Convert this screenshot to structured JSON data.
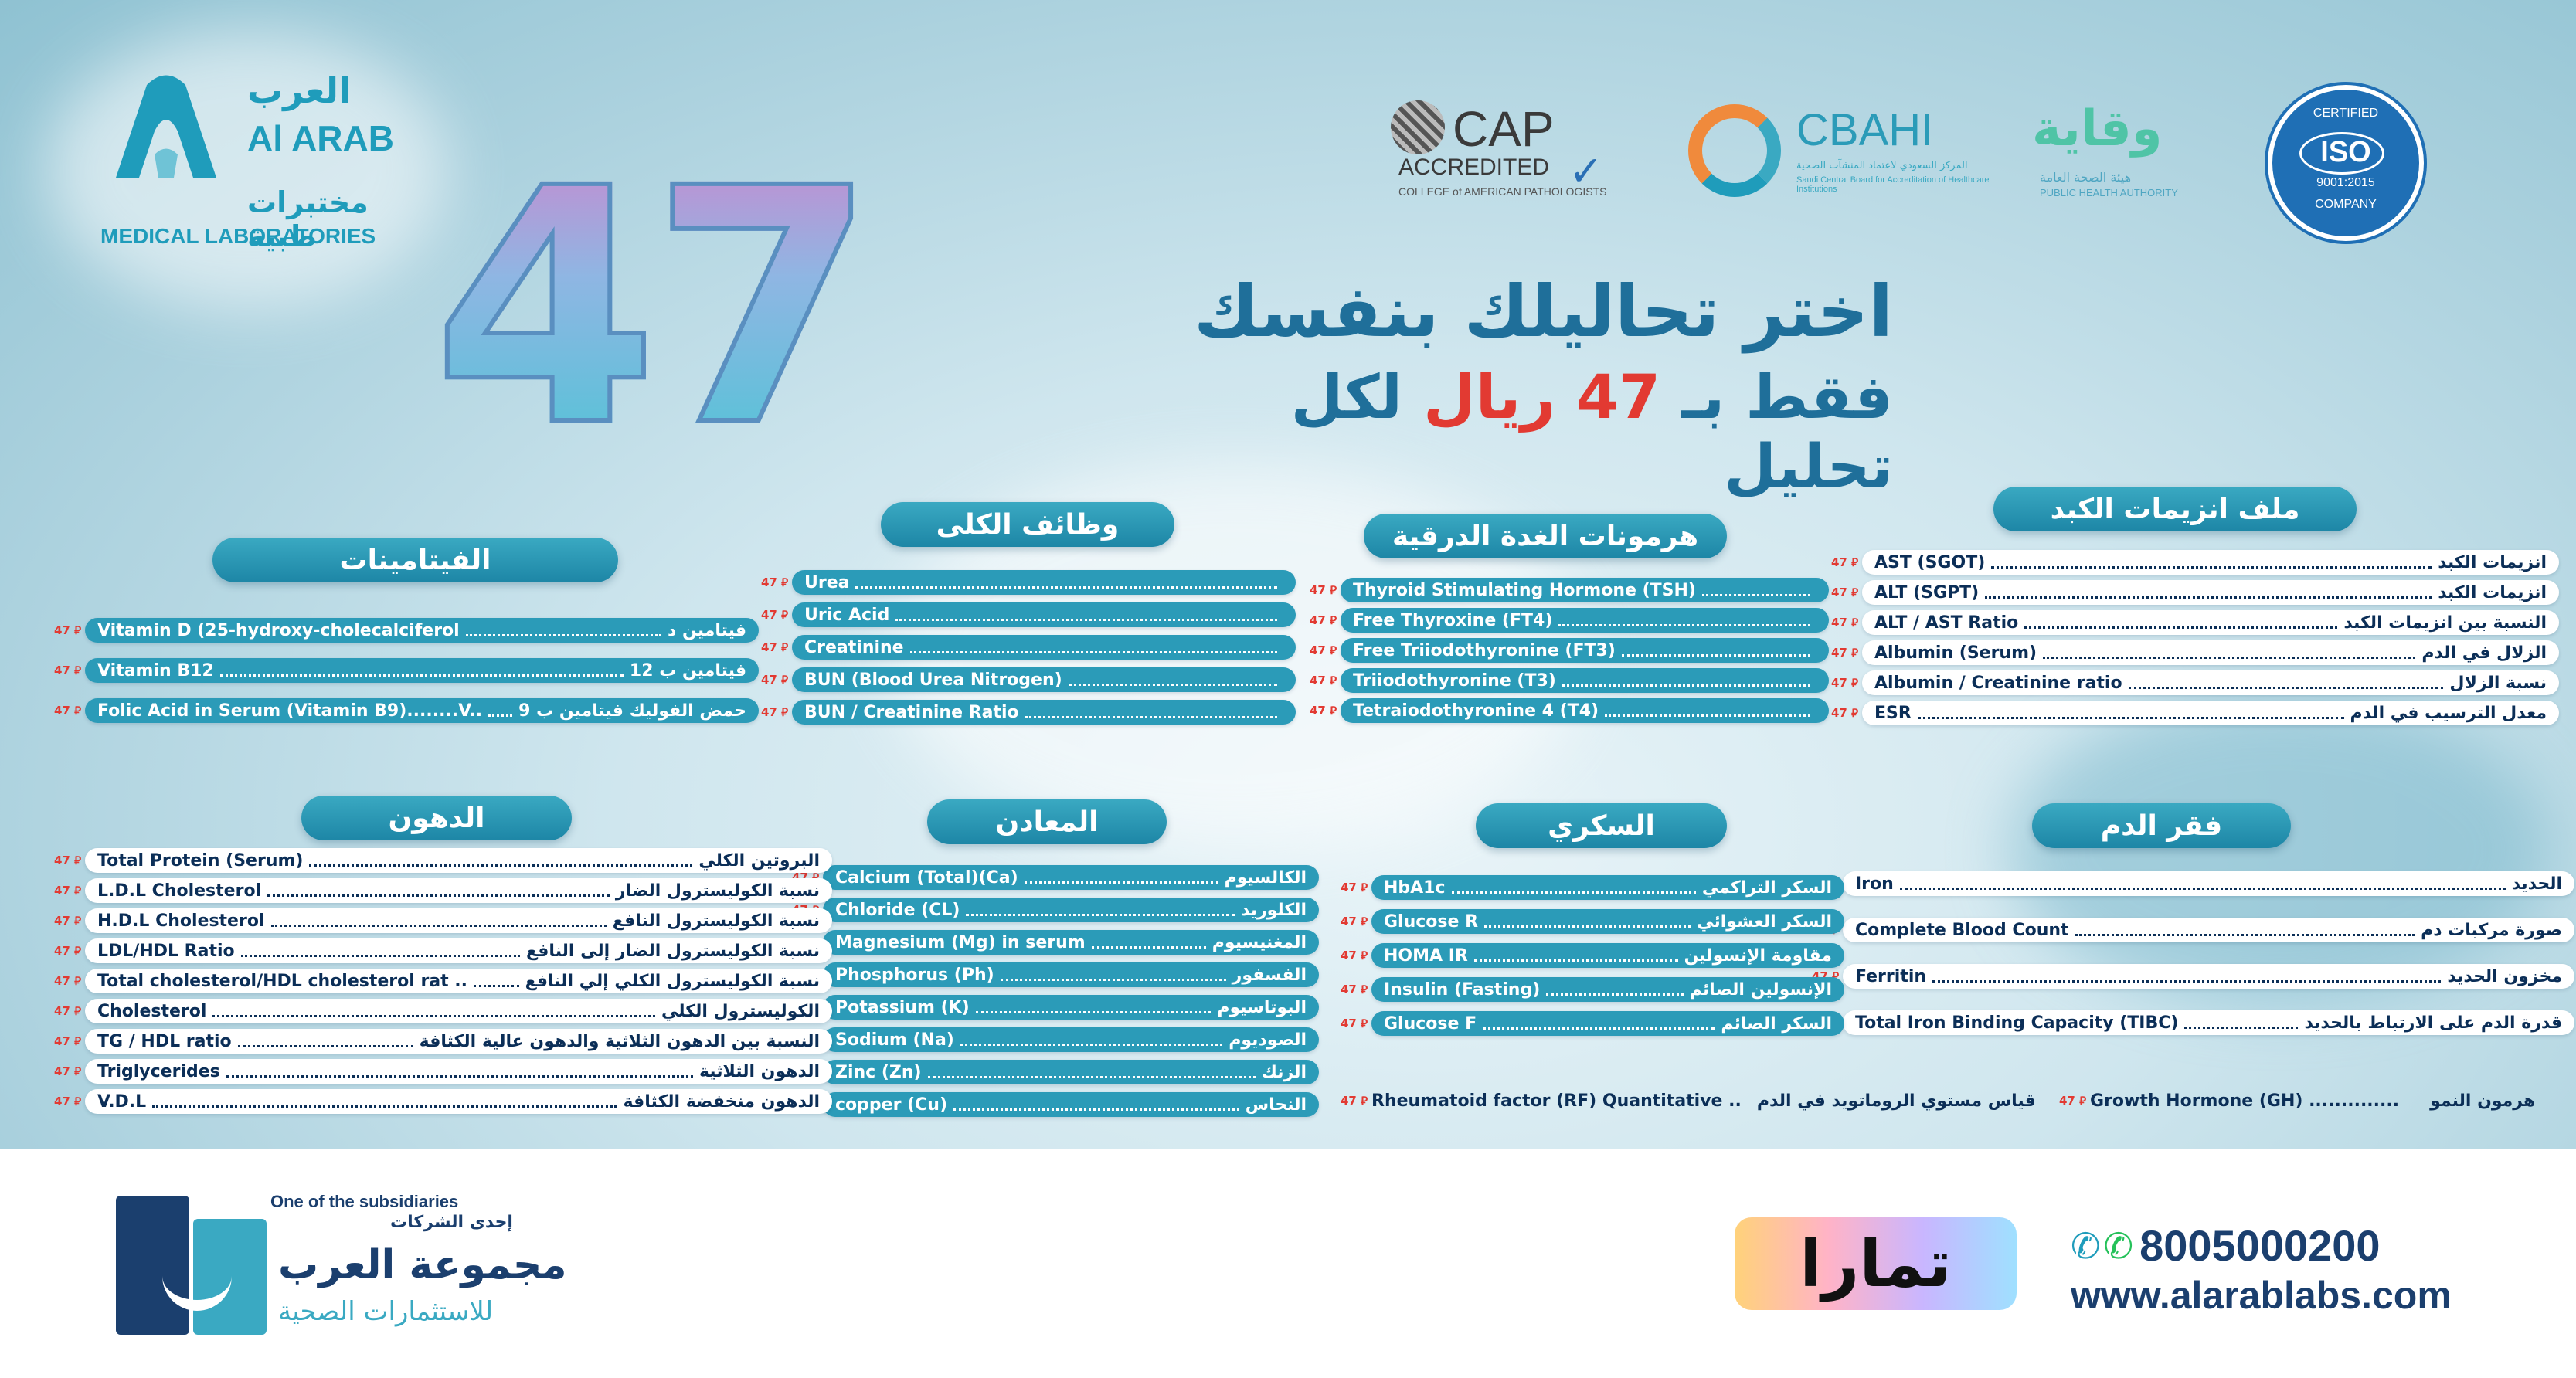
{
  "brand": {
    "name_ar": "العرب",
    "name_en": "Al ARAB",
    "sub_ar": "مختبرات طبية",
    "sub_en": "MEDICAL LABORATORIES"
  },
  "accreditations": {
    "cap_title": "CAP",
    "cap_sub": "ACCREDITED",
    "cap_caption": "COLLEGE of AMERICAN PATHOLOGISTS",
    "cbahi_title": "CBAHI",
    "cbahi_caption_ar": "المركز السعودي لاعتماد المنشآت الصحية",
    "cbahi_caption_en": "Saudi Central Board for Accreditation of Healthcare Institutions",
    "weqaya_ar": "وقاية",
    "weqaya_sub_ar": "هيئة الصحة العامة",
    "weqaya_sub_en": "PUBLIC HEALTH AUTHORITY",
    "iso_title": "ISO",
    "iso_top": "CERTIFIED",
    "iso_num": "9001:2015",
    "iso_bottom": "COMPANY"
  },
  "headline": {
    "big_number": "47",
    "title_ar": "اختر تحاليلك بنفسك",
    "sub_before": "فقط بـ",
    "sub_price": "47 ريال",
    "sub_after": "لكل تحليل"
  },
  "price_tag": "47 ⃁",
  "sections": {
    "liver": {
      "title": "ملف انزيمات الكبد",
      "items": [
        {
          "en": "AST (SGOT)",
          "ar": "انزيمات الكبد"
        },
        {
          "en": "ALT (SGPT)",
          "ar": "انزيمات الكبد"
        },
        {
          "en": "ALT / AST Ratio",
          "ar": "النسبة بين انزيمات الكبد"
        },
        {
          "en": "Albumin (Serum)",
          "ar": "الزلال في الدم"
        },
        {
          "en": "Albumin / Creatinine ratio",
          "ar": "نسبة الزلال"
        },
        {
          "en": "ESR",
          "ar": "معدل الترسيب في الدم"
        }
      ]
    },
    "thyroid": {
      "title": "هرمونات الغدة الدرقية",
      "items": [
        {
          "en": "Thyroid Stimulating Hormone (TSH)"
        },
        {
          "en": "Free Thyroxine (FT4)"
        },
        {
          "en": "Free Triiodothyronine (FT3)"
        },
        {
          "en": "Triiodothyronine (T3)"
        },
        {
          "en": "Tetraiodothyronine 4 (T4)"
        }
      ]
    },
    "kidney": {
      "title": "وظائف الكلى",
      "items": [
        {
          "en": "Urea"
        },
        {
          "en": "Uric Acid"
        },
        {
          "en": "Creatinine"
        },
        {
          "en": "BUN (Blood Urea Nitrogen)"
        },
        {
          "en": "BUN / Creatinine Ratio"
        }
      ]
    },
    "vitamins": {
      "title": "الفيتامينات",
      "items": [
        {
          "en": "Vitamin D (25-hydroxy-cholecalciferol",
          "ar": "فيتامين د"
        },
        {
          "en": "Vitamin B12",
          "ar": "فيتامين ب 12"
        },
        {
          "en": "Folic Acid in Serum (Vitamin B9)........V..",
          "ar": "حمض الفوليك فيتامين ب 9"
        }
      ]
    },
    "anemia": {
      "title": "فقر الدم",
      "items": [
        {
          "en": "Iron",
          "ar": "الحديد"
        },
        {
          "en": "Complete Blood Count",
          "ar": "صورة مركبات دم"
        },
        {
          "en": "Ferritin",
          "ar": "مخزون الحديد"
        },
        {
          "en": "Total Iron Binding Capacity (TIBC)",
          "ar": "قدرة الدم على الارتباط بالحديد"
        }
      ]
    },
    "diabetes": {
      "title": "السكري",
      "items": [
        {
          "en": "HbA1c",
          "ar": "السكر التراكمي"
        },
        {
          "en": "Glucose R",
          "ar": "السكر العشوائي"
        },
        {
          "en": "HOMA IR",
          "ar": "مقاومة الإنسولين"
        },
        {
          "en": "Insulin (Fasting)",
          "ar": "الإنسولين الصائم"
        },
        {
          "en": "Glucose F",
          "ar": "السكر الصائم"
        }
      ]
    },
    "minerals": {
      "title": "المعادن",
      "items": [
        {
          "en": "Calcium (Total)(Ca)",
          "ar": "الكالسيوم"
        },
        {
          "en": "Chloride (CL)",
          "ar": "الكلوريد"
        },
        {
          "en": "Magnesium (Mg) in serum",
          "ar": "المغنيسيوم"
        },
        {
          "en": "Phosphorus (Ph)",
          "ar": "الفسفور"
        },
        {
          "en": "Potassium (K)",
          "ar": "البوتاسيوم"
        },
        {
          "en": "Sodium (Na)",
          "ar": "الصوديوم"
        },
        {
          "en": "Zinc (Zn)",
          "ar": "الزنك"
        },
        {
          "en": "copper (Cu)",
          "ar": "النحاس"
        }
      ]
    },
    "lipids": {
      "title": "الدهون",
      "items": [
        {
          "en": "Total Protein (Serum)",
          "ar": "البروتين الكلي"
        },
        {
          "en": "L.D.L Cholesterol",
          "ar": "نسبة الكوليسترول الضار"
        },
        {
          "en": "H.D.L Cholesterol",
          "ar": "نسبة الكوليسترول النافع"
        },
        {
          "en": "LDL/HDL Ratio",
          "ar": "نسبة الكوليسترول الضار إلى النافع"
        },
        {
          "en": "Total cholesterol/HDL cholesterol rat ..",
          "ar": "نسبة الكوليسترول الكلي إلي النافع"
        },
        {
          "en": "Cholesterol",
          "ar": "الكوليسترول الكلي"
        },
        {
          "en": "TG / HDL ratio",
          "ar": "النسبة بين الدهون الثلاثية والدهون عالية الكثافة"
        },
        {
          "en": "Triglycerides",
          "ar": "الدهون الثلاثية"
        },
        {
          "en": "V.D.L",
          "ar": "الدهون منخفضة الكثافة"
        }
      ]
    }
  },
  "extras": {
    "growth": {
      "en": "Growth Hormone (GH) ..............",
      "ar": "هرمون النمو"
    },
    "rheuma": {
      "en": "Rheumatoid factor (RF) Quantitative ..",
      "ar": "قياس مستوي الروماتويد في الدم"
    }
  },
  "footer": {
    "subsidiary_en": "One of the subsidiaries",
    "subsidiary_ar": "إحدى الشركات",
    "group_ar": "مجموعة العرب",
    "group_sub_ar": "للاستثمارات الصحية",
    "tamara": "تمارا",
    "phone": "8005000200",
    "website": "www.alarablabs.com"
  },
  "colors": {
    "teal": "#2b9bb8",
    "navy": "#0b3d6b",
    "red": "#e23a32"
  }
}
